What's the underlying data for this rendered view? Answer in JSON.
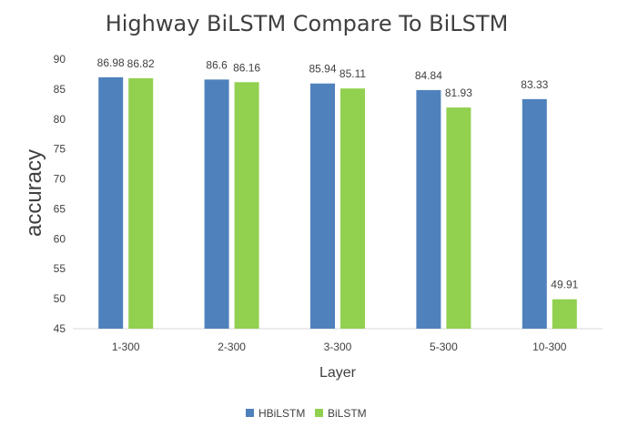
{
  "chart_data": {
    "type": "bar",
    "title": "Highway BiLSTM Compare To BiLSTM",
    "xlabel": "Layer",
    "ylabel": "accuracy",
    "categories": [
      "1-300",
      "2-300",
      "3-300",
      "5-300",
      "10-300"
    ],
    "ylim": [
      45,
      90
    ],
    "yticks": [
      45,
      50,
      55,
      60,
      65,
      70,
      75,
      80,
      85,
      90
    ],
    "grid": false,
    "legend_position": "bottom",
    "series": [
      {
        "name": "HBiLSTM",
        "color": "#4f81bd",
        "values": [
          86.98,
          86.6,
          85.94,
          84.84,
          83.33
        ],
        "labels": [
          "86.98",
          "86.6",
          "85.94",
          "84.84",
          "83.33"
        ]
      },
      {
        "name": "BiLSTM",
        "color": "#92d050",
        "values": [
          86.82,
          86.16,
          85.11,
          81.93,
          49.91
        ],
        "labels": [
          "86.82",
          "86.16",
          "85.11",
          "81.93",
          "49.91"
        ]
      }
    ]
  }
}
